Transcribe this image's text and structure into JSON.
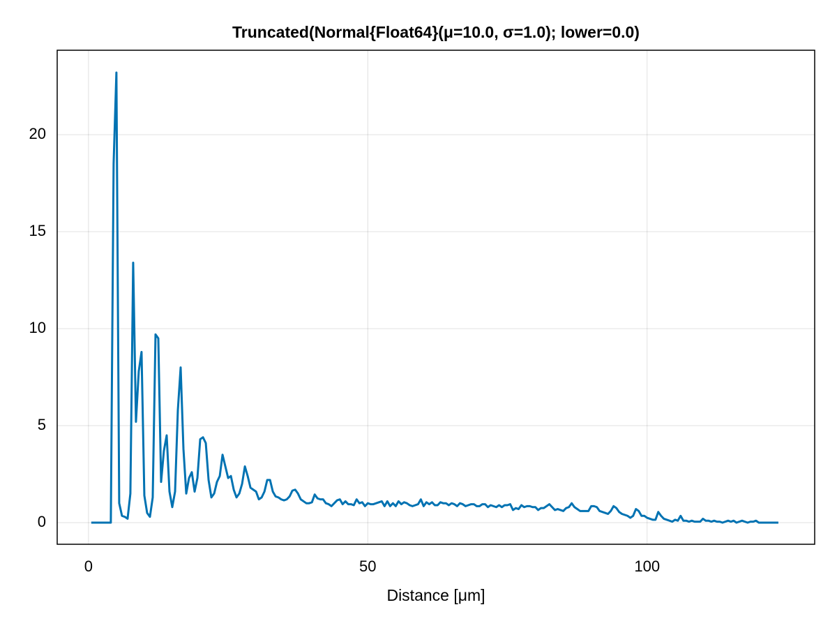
{
  "chart_data": {
    "type": "line",
    "title": "Truncated(Normal{Float64}(μ=10.0, σ=1.0); lower=0.0)",
    "x_label": "Distance [μm]",
    "color": "#0072b2",
    "grid": true,
    "xlim": [
      -5.6,
      130.0
    ],
    "ylim": [
      -1.115,
      24.35
    ],
    "xticks": [
      0,
      50,
      100
    ],
    "yticks": [
      0,
      5,
      10,
      15,
      20
    ],
    "x": [
      0.5,
      1,
      1.5,
      2,
      2.5,
      3,
      3.5,
      4,
      4.5,
      5,
      5.5,
      6,
      6.5,
      7,
      7.5,
      8,
      8.5,
      9,
      9.5,
      10,
      10.5,
      11,
      11.5,
      12,
      12.5,
      13,
      13.5,
      14,
      14.5,
      15,
      15.5,
      16,
      16.5,
      17,
      17.5,
      18,
      18.5,
      19,
      19.5,
      20,
      20.5,
      21,
      21.5,
      22,
      22.5,
      23,
      23.5,
      24,
      24.5,
      25,
      25.5,
      26,
      26.5,
      27,
      27.5,
      28,
      28.5,
      29,
      29.5,
      30,
      30.5,
      31,
      31.5,
      32,
      32.5,
      33,
      33.5,
      34,
      34.5,
      35,
      35.5,
      36,
      36.5,
      37,
      37.5,
      38,
      38.5,
      39,
      39.5,
      40,
      40.5,
      41,
      41.5,
      42,
      42.5,
      43,
      43.5,
      44,
      44.5,
      45,
      45.5,
      46,
      46.5,
      47,
      47.5,
      48,
      48.5,
      49,
      49.5,
      50,
      50.5,
      51,
      51.5,
      52,
      52.5,
      53,
      53.5,
      54,
      54.5,
      55,
      55.5,
      56,
      56.5,
      57,
      57.5,
      58,
      58.5,
      59,
      59.5,
      60,
      60.5,
      61,
      61.5,
      62,
      62.5,
      63,
      63.5,
      64,
      64.5,
      65,
      65.5,
      66,
      66.5,
      67,
      67.5,
      68,
      68.5,
      69,
      69.5,
      70,
      70.5,
      71,
      71.5,
      72,
      72.5,
      73,
      73.5,
      74,
      74.5,
      75,
      75.5,
      76,
      76.5,
      77,
      77.5,
      78,
      78.5,
      79,
      79.5,
      80,
      80.5,
      81,
      81.5,
      82,
      82.5,
      83,
      83.5,
      84,
      84.5,
      85,
      85.5,
      86,
      86.5,
      87,
      87.5,
      88,
      88.5,
      89,
      89.5,
      90,
      90.5,
      91,
      91.5,
      92,
      92.5,
      93,
      93.5,
      94,
      94.5,
      95,
      95.5,
      96,
      96.5,
      97,
      97.5,
      98,
      98.5,
      99,
      99.5,
      100,
      100.5,
      101,
      101.5,
      102,
      102.5,
      103,
      103.5,
      104,
      104.5,
      105,
      105.5,
      106,
      106.5,
      107,
      107.5,
      108,
      108.5,
      109,
      109.5,
      110,
      110.5,
      111,
      111.5,
      112,
      112.5,
      113,
      113.5,
      114,
      114.5,
      115,
      115.5,
      116,
      116.5,
      117,
      117.5,
      118,
      118.5,
      119,
      119.5,
      120,
      120.5,
      121,
      121.5,
      122,
      122.5,
      123,
      123.5
    ],
    "values": [
      0,
      0,
      0,
      0,
      0,
      0,
      0,
      0,
      18.5,
      23.2,
      1.0,
      0.35,
      0.3,
      0.2,
      1.5,
      13.4,
      5.2,
      7.8,
      8.8,
      1.4,
      0.5,
      0.3,
      1.3,
      9.7,
      9.5,
      2.1,
      3.7,
      4.5,
      1.6,
      0.8,
      1.6,
      5.8,
      8.0,
      3.8,
      1.5,
      2.3,
      2.6,
      1.6,
      2.3,
      4.3,
      4.4,
      4.1,
      2.2,
      1.3,
      1.5,
      2.1,
      2.4,
      3.5,
      2.9,
      2.3,
      2.4,
      1.7,
      1.3,
      1.5,
      2.0,
      2.9,
      2.4,
      1.8,
      1.7,
      1.6,
      1.2,
      1.3,
      1.6,
      2.2,
      2.2,
      1.6,
      1.35,
      1.3,
      1.2,
      1.15,
      1.2,
      1.35,
      1.65,
      1.7,
      1.5,
      1.2,
      1.1,
      1.0,
      1.0,
      1.05,
      1.45,
      1.25,
      1.2,
      1.2,
      1.0,
      0.95,
      0.85,
      1.0,
      1.15,
      1.2,
      0.95,
      1.1,
      0.95,
      0.95,
      0.9,
      1.2,
      1.0,
      1.05,
      0.85,
      1.0,
      0.95,
      0.95,
      1.0,
      1.05,
      1.1,
      0.85,
      1.1,
      0.85,
      1.0,
      0.85,
      1.1,
      0.95,
      1.05,
      1.0,
      0.9,
      0.85,
      0.9,
      0.95,
      1.2,
      0.85,
      1.05,
      0.95,
      1.05,
      0.9,
      0.9,
      1.05,
      1.0,
      1.0,
      0.9,
      1.0,
      0.95,
      0.85,
      1.0,
      0.95,
      0.85,
      0.9,
      0.95,
      0.95,
      0.85,
      0.85,
      0.95,
      0.95,
      0.8,
      0.9,
      0.85,
      0.8,
      0.9,
      0.8,
      0.9,
      0.9,
      0.95,
      0.65,
      0.75,
      0.7,
      0.9,
      0.8,
      0.85,
      0.85,
      0.8,
      0.8,
      0.65,
      0.75,
      0.75,
      0.85,
      0.95,
      0.8,
      0.65,
      0.7,
      0.65,
      0.6,
      0.75,
      0.8,
      1.0,
      0.8,
      0.7,
      0.6,
      0.6,
      0.6,
      0.6,
      0.85,
      0.85,
      0.8,
      0.6,
      0.55,
      0.5,
      0.45,
      0.6,
      0.85,
      0.75,
      0.55,
      0.45,
      0.4,
      0.35,
      0.25,
      0.35,
      0.7,
      0.6,
      0.35,
      0.35,
      0.25,
      0.2,
      0.15,
      0.15,
      0.55,
      0.35,
      0.2,
      0.15,
      0.1,
      0.05,
      0.15,
      0.1,
      0.35,
      0.1,
      0.1,
      0.05,
      0.1,
      0.05,
      0.05,
      0.05,
      0.2,
      0.1,
      0.1,
      0.05,
      0.1,
      0.05,
      0.05,
      0.0,
      0.05,
      0.1,
      0.05,
      0.1,
      0.0,
      0.05,
      0.1,
      0.05,
      0.0,
      0.05,
      0.05,
      0.1,
      0.0,
      0.0,
      0,
      0,
      0,
      0,
      0,
      0
    ]
  }
}
